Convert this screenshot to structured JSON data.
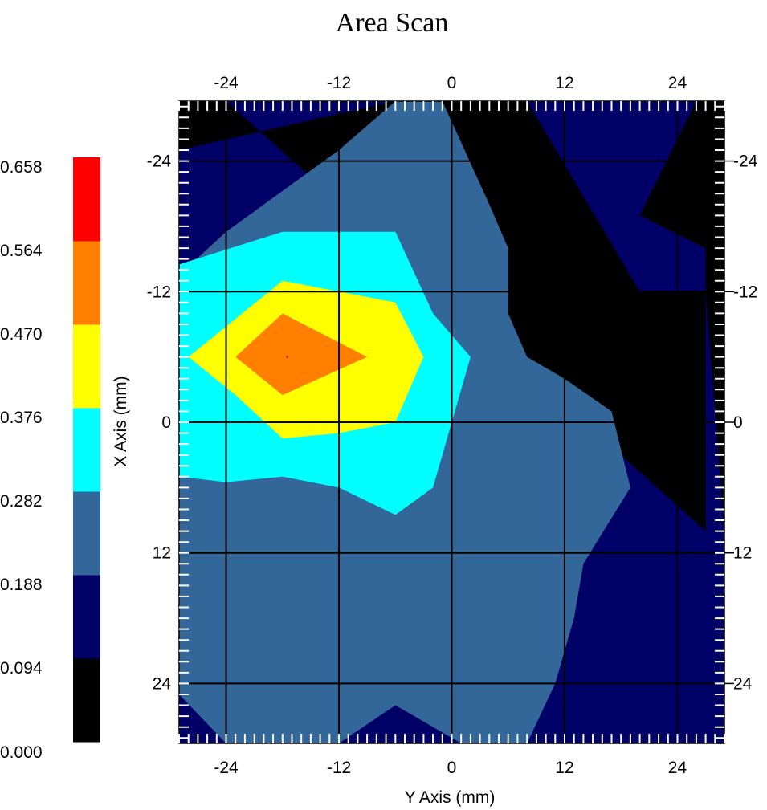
{
  "chart_data": {
    "type": "heatmap",
    "title": "Area Scan",
    "xlabel": "Y Axis (mm)",
    "ylabel": "X Axis (mm)",
    "xlim": [
      -29,
      29
    ],
    "ylim": [
      -29.5,
      29.5
    ],
    "y_axis_inverted": true,
    "grid": true,
    "x_ticks": [
      -24,
      -12,
      0,
      12,
      24
    ],
    "y_ticks": [
      -24,
      -12,
      0,
      12,
      24
    ],
    "legend_position": "left",
    "colorbar": {
      "levels": [
        "0.000",
        "0.094",
        "0.188",
        "0.282",
        "0.376",
        "0.470",
        "0.564",
        "0.658"
      ],
      "colors": [
        "#000000",
        "#000066",
        "#336699",
        "#00ffff",
        "#ffff00",
        "#ff7f00",
        "#ff0000"
      ]
    },
    "peak": {
      "x": -17.5,
      "y": -6,
      "value": 0.55
    },
    "bands": [
      {
        "level": 0,
        "color": "#000000",
        "polygon": [
          [
            -29,
            -29.5
          ],
          [
            29,
            -29.5
          ],
          [
            29,
            29.5
          ],
          [
            -29,
            29.5
          ]
        ]
      },
      {
        "level": 1,
        "color": "#000066",
        "polygon": [
          [
            -24,
            -29.5
          ],
          [
            -6,
            -29.5
          ],
          [
            -29,
            -25
          ],
          [
            -29,
            29.5
          ],
          [
            -29,
            29.5
          ],
          [
            29,
            29.5
          ],
          [
            29,
            10
          ],
          [
            27,
            -12
          ],
          [
            27,
            -16
          ],
          [
            20,
            -19
          ],
          [
            26,
            -29.5
          ],
          [
            8,
            -29.5
          ],
          [
            20,
            -12
          ],
          [
            27,
            -12
          ],
          [
            27,
            10
          ]
        ]
      },
      {
        "level": 2,
        "color": "#336699",
        "polygon": [
          [
            -29,
            -13.5
          ],
          [
            -24,
            -17.5
          ],
          [
            -12,
            -25
          ],
          [
            -6,
            -29.5
          ],
          [
            -1,
            -29.5
          ],
          [
            4,
            -20
          ],
          [
            6,
            -16
          ],
          [
            6,
            -10
          ],
          [
            8,
            -6
          ],
          [
            12,
            -4
          ],
          [
            17,
            -1
          ],
          [
            19,
            6
          ],
          [
            14,
            13
          ],
          [
            13,
            18
          ],
          [
            11,
            24
          ],
          [
            8,
            29.5
          ],
          [
            1,
            29.5
          ],
          [
            -6,
            26
          ],
          [
            -12,
            29.5
          ],
          [
            -24,
            29.5
          ],
          [
            -29,
            25
          ]
        ]
      },
      {
        "level": 3,
        "color": "#00ffff",
        "polygon": [
          [
            -29,
            -14.5
          ],
          [
            -18,
            -17.5
          ],
          [
            -6,
            -17.5
          ],
          [
            -2,
            -10
          ],
          [
            2,
            -6
          ],
          [
            0,
            0
          ],
          [
            -2,
            6
          ],
          [
            -6,
            8.5
          ],
          [
            -12,
            6
          ],
          [
            -18,
            5
          ],
          [
            -24,
            5.5
          ],
          [
            -29,
            5
          ]
        ]
      },
      {
        "level": 4,
        "color": "#ffff00",
        "polygon": [
          [
            -28,
            -6
          ],
          [
            -18,
            -13
          ],
          [
            -6,
            -11
          ],
          [
            -3,
            -6
          ],
          [
            -6,
            0
          ],
          [
            -12,
            1
          ],
          [
            -18,
            1.5
          ],
          [
            -23,
            -2.5
          ]
        ]
      },
      {
        "level": 5,
        "color": "#ff7f00",
        "polygon": [
          [
            -23,
            -6
          ],
          [
            -18,
            -10
          ],
          [
            -9,
            -6
          ],
          [
            -18,
            -2.5
          ]
        ]
      }
    ]
  }
}
